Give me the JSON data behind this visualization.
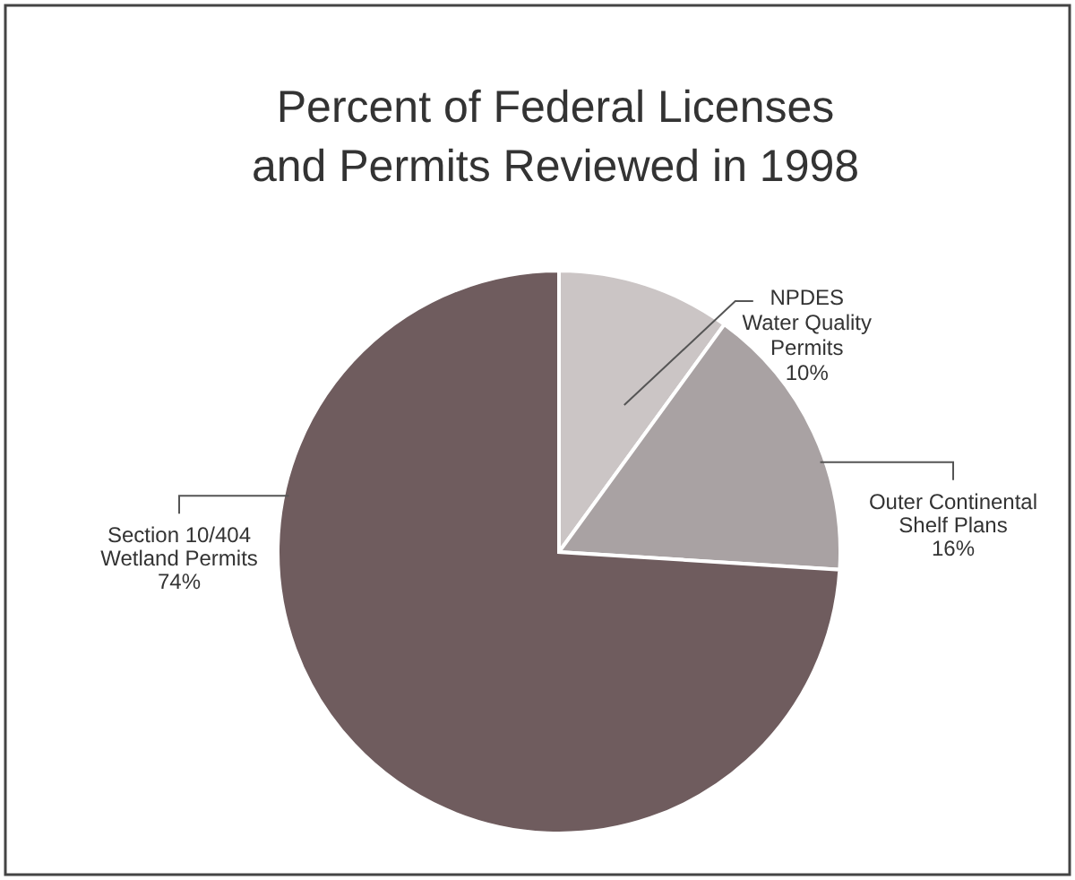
{
  "chart_data": {
    "type": "pie",
    "title": "Percent of Federal Licenses and Permits Reviewed in 1998",
    "categories": [
      "NPDES\nWater Quality\nPermits",
      "Outer Continental\nShelf Plans",
      "Section 10/404\nWetland Permits"
    ],
    "values": [
      10,
      16,
      74
    ],
    "value_labels": [
      "10%",
      "16%",
      "74%"
    ],
    "colors": [
      "#cbc5c5",
      "#a9a2a3",
      "#6f5c5e"
    ]
  }
}
